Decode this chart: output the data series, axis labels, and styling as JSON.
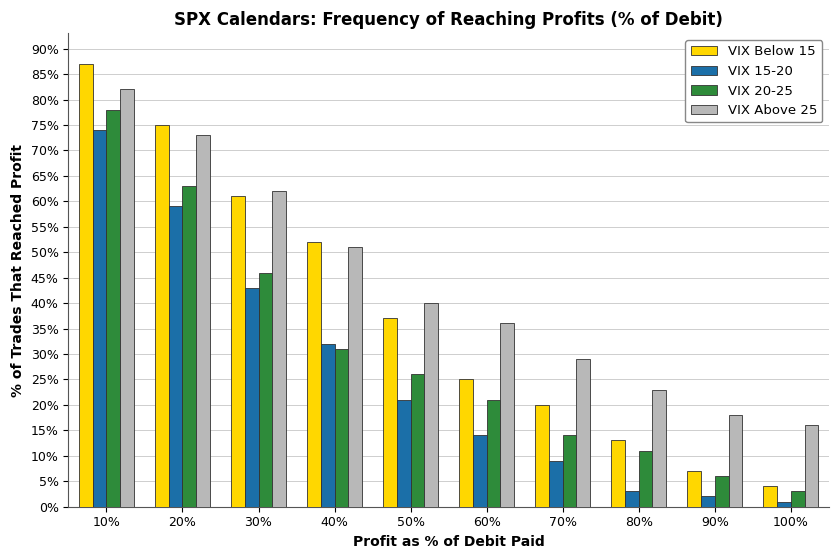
{
  "title": "SPX Calendars: Frequency of Reaching Profits (% of Debit)",
  "xlabel": "Profit as % of Debit Paid",
  "ylabel": "% of Trades That Reached Profit",
  "categories": [
    "10%",
    "20%",
    "30%",
    "40%",
    "50%",
    "60%",
    "70%",
    "80%",
    "90%",
    "100%"
  ],
  "series": {
    "VIX Below 15": [
      87,
      75,
      61,
      52,
      37,
      25,
      20,
      13,
      7,
      4
    ],
    "VIX 15-20": [
      74,
      59,
      43,
      32,
      21,
      14,
      9,
      3,
      2,
      1
    ],
    "VIX 20-25": [
      78,
      63,
      46,
      31,
      26,
      21,
      14,
      11,
      6,
      3
    ],
    "VIX Above 25": [
      82,
      73,
      62,
      51,
      40,
      36,
      29,
      23,
      18,
      16
    ]
  },
  "colors": {
    "VIX Below 15": "#FFD700",
    "VIX 15-20": "#1B6FA8",
    "VIX 20-25": "#2E8B3A",
    "VIX Above 25": "#B8B8B8"
  },
  "yticks": [
    0,
    5,
    10,
    15,
    20,
    25,
    30,
    35,
    40,
    45,
    50,
    55,
    60,
    65,
    70,
    75,
    80,
    85,
    90
  ],
  "ylim": [
    0,
    93
  ],
  "bar_edge_color": "#333333",
  "bar_edge_width": 0.6,
  "grid_color": "#bbbbbb",
  "legend_loc": "upper right",
  "title_fontsize": 12,
  "axis_label_fontsize": 10,
  "tick_fontsize": 9,
  "legend_fontsize": 9.5
}
